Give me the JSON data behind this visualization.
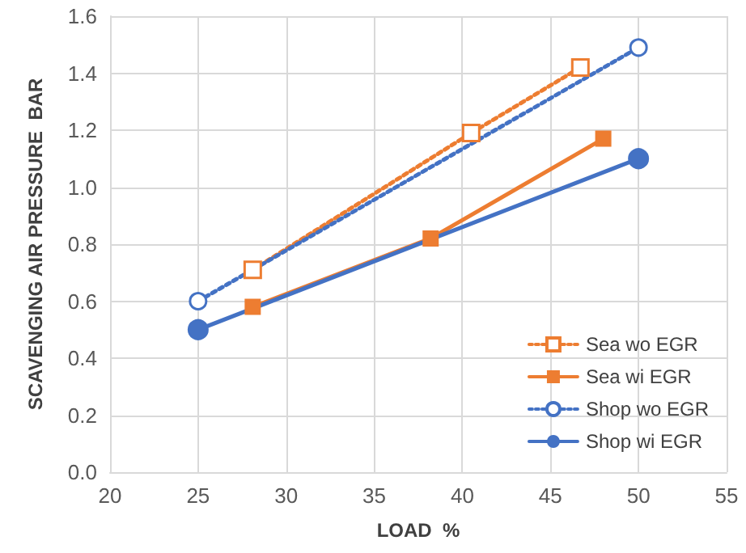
{
  "chart_data": {
    "type": "line",
    "xlabel": "LOAD  %",
    "ylabel": "SCAVENGING AIR PRESSURE  BAR",
    "xlim": [
      20,
      55
    ],
    "xticks": [
      20,
      25,
      30,
      35,
      40,
      45,
      50,
      55
    ],
    "ylim": [
      0,
      1.6
    ],
    "yticks": [
      {
        "value": 0,
        "label": "0.0"
      },
      {
        "value": 0.2,
        "label": "0.2"
      },
      {
        "value": 0.4,
        "label": "0.4"
      },
      {
        "value": 0.6,
        "label": "0.6"
      },
      {
        "value": 0.8,
        "label": "0.8"
      },
      {
        "value": 1,
        "label": "1.0"
      },
      {
        "value": 1.2,
        "label": "1.2"
      },
      {
        "value": 1.4,
        "label": "1.4"
      },
      {
        "value": 1.6,
        "label": "1.6"
      }
    ],
    "grid": true,
    "legend": "bottom right",
    "series": [
      {
        "name": "Sea wo EGR",
        "color": "#ed7d31",
        "x": [
          28.1,
          40.5,
          46.7
        ],
        "values": [
          0.71,
          1.19,
          1.42
        ],
        "marker": "square",
        "line_style": "dotted"
      },
      {
        "name": "Sea wi EGR",
        "color": "#ed7d31",
        "x": [
          28.1,
          38.2,
          48
        ],
        "values": [
          0.58,
          0.82,
          1.17
        ],
        "marker": "square",
        "line_style": "solid"
      },
      {
        "name": "Shop wo EGR",
        "color": "#4472c4",
        "x": [
          25,
          50
        ],
        "values": [
          0.6,
          1.49
        ],
        "marker": "circle",
        "line_style": "dotted"
      },
      {
        "name": "Shop wi EGR",
        "color": "#4472c4",
        "x": [
          25,
          50
        ],
        "values": [
          0.5,
          1.1
        ],
        "marker": "circle",
        "line_style": "solid"
      }
    ]
  }
}
